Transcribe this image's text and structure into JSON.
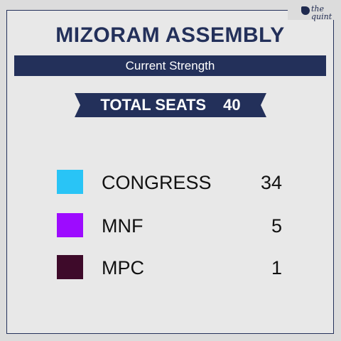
{
  "logo": {
    "line1": "the",
    "line2": "quint"
  },
  "header": {
    "title": "MIZORAM ASSEMBLY",
    "subtitle": "Current Strength"
  },
  "total": {
    "label": "TOTAL SEATS",
    "value": "40"
  },
  "parties": [
    {
      "name": "CONGRESS",
      "seats": "34",
      "color": "#29c4f6"
    },
    {
      "name": "MNF",
      "seats": "5",
      "color": "#9d0bff"
    },
    {
      "name": "MPC",
      "seats": "1",
      "color": "#3e0a2a"
    }
  ],
  "colors": {
    "navy": "#23305a",
    "background": "#e8e8e8"
  }
}
